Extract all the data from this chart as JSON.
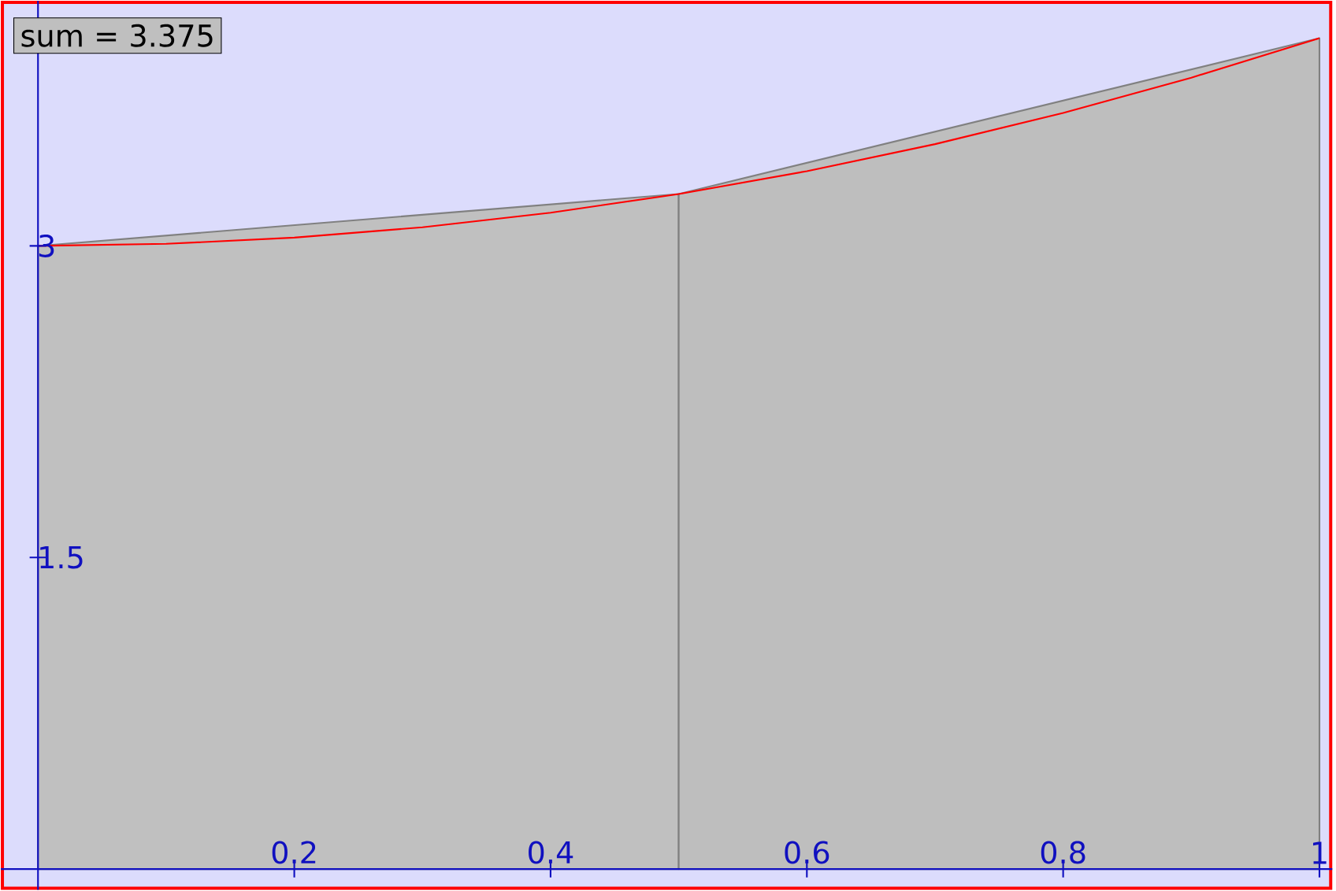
{
  "chart_data": {
    "type": "area",
    "xlim": [
      -0.029,
      1.01
    ],
    "ylim": [
      -0.1,
      4.18
    ],
    "xticks": [
      0.2,
      0.4,
      0.6,
      0.8,
      1
    ],
    "yticks": [
      1.5,
      3
    ],
    "series": [
      {
        "color": "#c0c0c0",
        "x": [
          0,
          0.5
        ],
        "values": [
          3,
          3.25
        ]
      },
      {
        "color": "#bebebe",
        "x": [
          0.5,
          1
        ],
        "values": [
          3.25,
          4
        ]
      },
      {
        "type": "line",
        "color": "#ff0000",
        "x": [
          0,
          0.1,
          0.2,
          0.3,
          0.4,
          0.5,
          0.6,
          0.7,
          0.8,
          0.9,
          1
        ],
        "values": [
          3,
          3.01,
          3.04,
          3.09,
          3.16,
          3.25,
          3.36,
          3.49,
          3.64,
          3.81,
          4
        ]
      }
    ],
    "annotations": [
      "sum = 3.375"
    ]
  }
}
